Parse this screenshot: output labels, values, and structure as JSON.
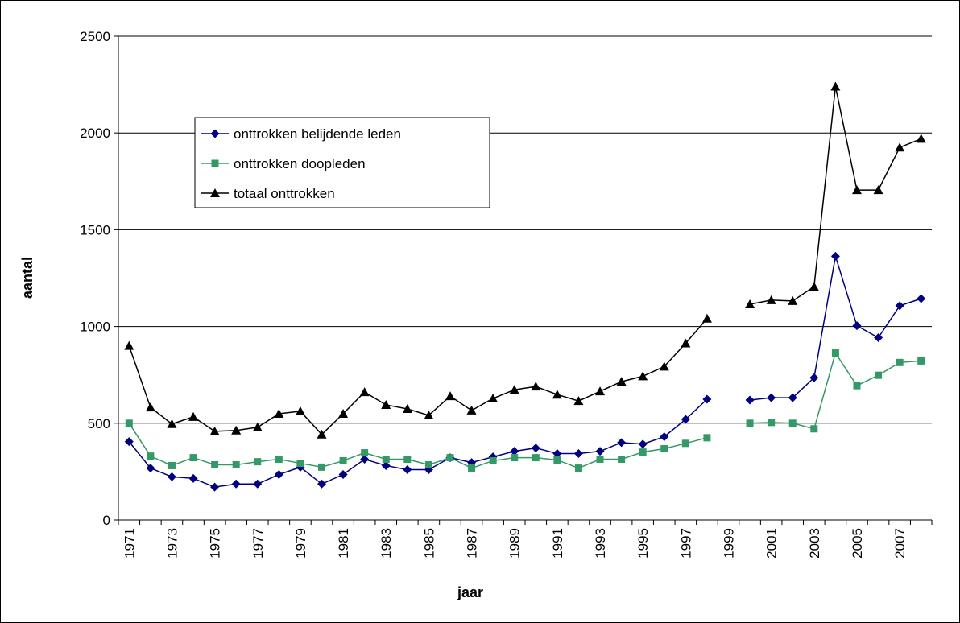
{
  "chart_data": {
    "type": "line",
    "x_label": "jaar",
    "y_label": "aantal",
    "categories": [
      "1971",
      null,
      "1973",
      null,
      "1975",
      null,
      "1977",
      null,
      "1979",
      null,
      "1981",
      null,
      "1983",
      null,
      "1985",
      null,
      "1987",
      null,
      "1989",
      null,
      "1991",
      null,
      "1993",
      null,
      "1995",
      null,
      "1997",
      null,
      "1999",
      null,
      "2001",
      null,
      "2003",
      null,
      "2005",
      null,
      "2007",
      null
    ],
    "series": [
      {
        "name": "onttrokken belijdende leden",
        "color": "#000080",
        "marker": "diamond",
        "values": [
          405,
          268,
          223,
          215,
          170,
          186,
          186,
          235,
          273,
          186,
          235,
          314,
          281,
          260,
          260,
          322,
          297,
          326,
          355,
          372,
          343,
          343,
          355,
          400,
          392,
          430,
          520,
          624,
          null,
          620,
          632,
          632,
          735,
          1363,
          1004,
          942,
          1107,
          1144
        ]
      },
      {
        "name": "onttrokken doopleden",
        "color": "#339966",
        "marker": "square",
        "values": [
          500,
          330,
          281,
          322,
          285,
          285,
          301,
          314,
          293,
          273,
          306,
          347,
          314,
          314,
          285,
          322,
          268,
          306,
          322,
          322,
          310,
          268,
          314,
          314,
          351,
          368,
          396,
          425,
          null,
          500,
          504,
          500,
          471,
          863,
          694,
          748,
          814,
          822
        ]
      },
      {
        "name": "totaal onttrokken",
        "color": "#000000",
        "marker": "triangle",
        "values": [
          900,
          582,
          496,
          533,
          458,
          463,
          479,
          549,
          562,
          442,
          549,
          661,
          595,
          574,
          541,
          640,
          566,
          628,
          673,
          690,
          648,
          615,
          665,
          715,
          743,
          793,
          913,
          1041,
          null,
          1115,
          1136,
          1132,
          1206,
          2240,
          1705,
          1705,
          1925,
          1970
        ]
      }
    ],
    "ylim": [
      0,
      2500
    ],
    "yticks": [
      0,
      500,
      1000,
      1500,
      2000,
      2500
    ],
    "grid": true,
    "legend": "upper left"
  }
}
